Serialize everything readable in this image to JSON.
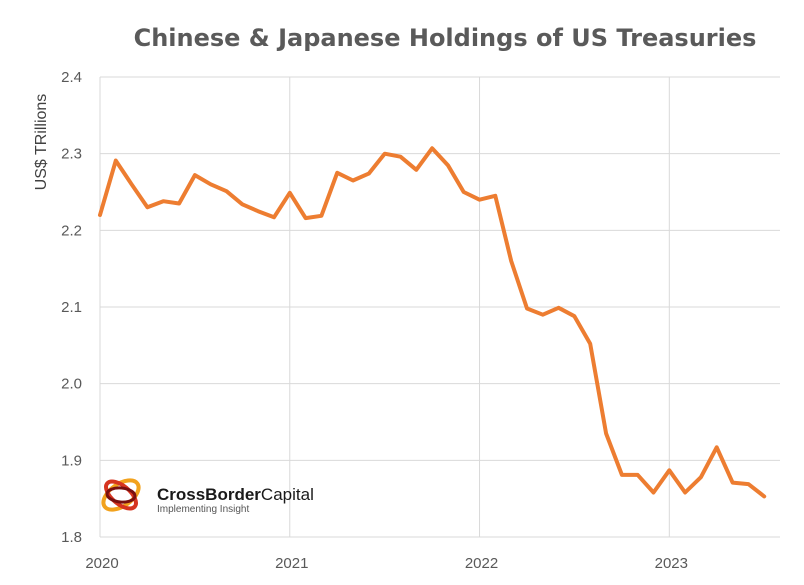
{
  "chart_data": {
    "type": "line",
    "title": "Chinese & Japanese Holdings of US Treasuries",
    "ylabel": "US$ TRillions",
    "xlabel": "",
    "ylim": [
      1.8,
      2.4
    ],
    "xlim": [
      2020.0,
      2023.5833
    ],
    "yticks": [
      "1.8",
      "1.9",
      "2.0",
      "2.1",
      "2.2",
      "2.3",
      "2.4"
    ],
    "xticks": [
      "2020",
      "2021",
      "2022",
      "2023"
    ],
    "grid": true,
    "color": "#ED7D31",
    "series": [
      {
        "values": [
          [
            2020.0,
            2.22
          ],
          [
            2020.0833,
            2.291
          ],
          [
            2020.1667,
            2.26
          ],
          [
            2020.25,
            2.23
          ],
          [
            2020.3333,
            2.238
          ],
          [
            2020.4167,
            2.235
          ],
          [
            2020.5,
            2.272
          ],
          [
            2020.5833,
            2.26
          ],
          [
            2020.6667,
            2.251
          ],
          [
            2020.75,
            2.234
          ],
          [
            2020.8333,
            2.225
          ],
          [
            2020.9167,
            2.217
          ],
          [
            2021.0,
            2.249
          ],
          [
            2021.0833,
            2.216
          ],
          [
            2021.1667,
            2.219
          ],
          [
            2021.25,
            2.275
          ],
          [
            2021.3333,
            2.265
          ],
          [
            2021.4167,
            2.274
          ],
          [
            2021.5,
            2.3
          ],
          [
            2021.5833,
            2.296
          ],
          [
            2021.6667,
            2.279
          ],
          [
            2021.75,
            2.307
          ],
          [
            2021.8333,
            2.285
          ],
          [
            2021.9167,
            2.25
          ],
          [
            2022.0,
            2.24
          ],
          [
            2022.0833,
            2.245
          ],
          [
            2022.1667,
            2.16
          ],
          [
            2022.25,
            2.098
          ],
          [
            2022.3333,
            2.09
          ],
          [
            2022.4167,
            2.099
          ],
          [
            2022.5,
            2.088
          ],
          [
            2022.5833,
            2.052
          ],
          [
            2022.6667,
            1.935
          ],
          [
            2022.75,
            1.881
          ],
          [
            2022.8333,
            1.881
          ],
          [
            2022.9167,
            1.858
          ],
          [
            2023.0,
            1.887
          ],
          [
            2023.0833,
            1.858
          ],
          [
            2023.1667,
            1.878
          ],
          [
            2023.25,
            1.917
          ],
          [
            2023.3333,
            1.871
          ],
          [
            2023.4167,
            1.869
          ],
          [
            2023.5,
            1.853
          ]
        ]
      }
    ]
  },
  "logo": {
    "name_bold": "CrossBorder",
    "name_light": "Capital",
    "tagline": "Implementing Insight"
  }
}
